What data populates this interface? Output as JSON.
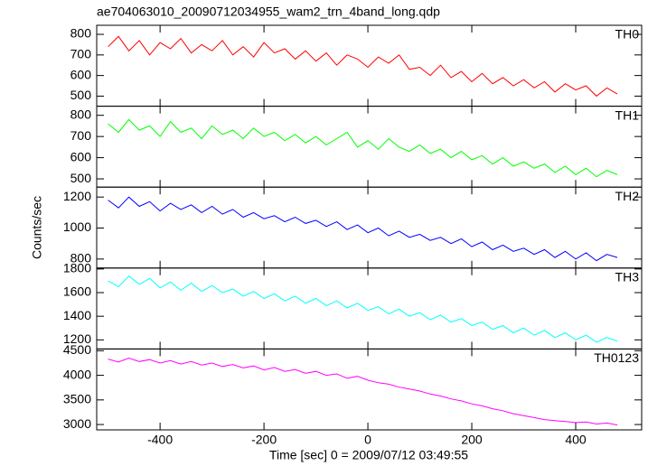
{
  "chart_data": {
    "type": "line",
    "title": "ae704063010_20090712034955_wam2_trn_4band_long.qdp",
    "xlabel": "Time [sec] 0 = 2009/07/12 03:49:55",
    "ylabel": "Counts/sec",
    "xlim": [
      -522,
      527
    ],
    "xticks": [
      -400,
      -200,
      0,
      200,
      400
    ],
    "x": [
      -500,
      -480,
      -460,
      -440,
      -420,
      -400,
      -380,
      -360,
      -340,
      -320,
      -300,
      -280,
      -260,
      -240,
      -220,
      -200,
      -180,
      -160,
      -140,
      -120,
      -100,
      -80,
      -60,
      -40,
      -20,
      0,
      20,
      40,
      60,
      80,
      100,
      120,
      140,
      160,
      180,
      200,
      220,
      240,
      260,
      280,
      300,
      320,
      340,
      360,
      380,
      400,
      420,
      440,
      460,
      480
    ],
    "series": [
      {
        "name": "TH0",
        "color": "#ff0000",
        "ylim": [
          451,
          844
        ],
        "yticks": [
          500,
          600,
          700,
          800
        ],
        "values": [
          740,
          790,
          720,
          770,
          700,
          760,
          730,
          780,
          710,
          750,
          720,
          770,
          700,
          740,
          690,
          760,
          710,
          730,
          680,
          720,
          670,
          710,
          650,
          700,
          680,
          640,
          690,
          660,
          700,
          630,
          640,
          600,
          650,
          590,
          620,
          570,
          610,
          560,
          590,
          550,
          580,
          540,
          570,
          520,
          560,
          530,
          550,
          500,
          540,
          510
        ]
      },
      {
        "name": "TH1",
        "color": "#00ff00",
        "ylim": [
          461,
          843
        ],
        "yticks": [
          500,
          600,
          700,
          800
        ],
        "values": [
          760,
          720,
          780,
          730,
          750,
          700,
          770,
          720,
          740,
          690,
          750,
          710,
          730,
          690,
          740,
          700,
          720,
          680,
          710,
          670,
          700,
          660,
          690,
          720,
          650,
          680,
          640,
          690,
          650,
          630,
          660,
          620,
          640,
          600,
          630,
          590,
          610,
          570,
          600,
          560,
          580,
          550,
          570,
          530,
          560,
          520,
          550,
          510,
          540,
          520
        ]
      },
      {
        "name": "TH2",
        "color": "#0000ff",
        "ylim": [
          742,
          1264
        ],
        "yticks": [
          800,
          1000,
          1200
        ],
        "values": [
          1180,
          1130,
          1200,
          1140,
          1170,
          1110,
          1160,
          1120,
          1150,
          1100,
          1140,
          1090,
          1120,
          1070,
          1100,
          1060,
          1080,
          1040,
          1070,
          1030,
          1050,
          1010,
          1040,
          990,
          1020,
          970,
          1000,
          950,
          980,
          940,
          960,
          920,
          940,
          900,
          930,
          880,
          910,
          860,
          890,
          850,
          870,
          830,
          860,
          810,
          850,
          800,
          840,
          790,
          830,
          810
        ]
      },
      {
        "name": "TH3",
        "color": "#00ffff",
        "ylim": [
          1123,
          1808
        ],
        "yticks": [
          1200,
          1400,
          1600,
          1800
        ],
        "values": [
          1700,
          1650,
          1740,
          1670,
          1720,
          1640,
          1690,
          1620,
          1680,
          1610,
          1660,
          1600,
          1630,
          1570,
          1610,
          1550,
          1590,
          1530,
          1570,
          1510,
          1550,
          1490,
          1530,
          1470,
          1510,
          1450,
          1480,
          1420,
          1460,
          1400,
          1430,
          1370,
          1410,
          1350,
          1380,
          1320,
          1350,
          1290,
          1320,
          1260,
          1300,
          1240,
          1280,
          1220,
          1260,
          1200,
          1240,
          1180,
          1220,
          1190
        ]
      },
      {
        "name": "TH0123",
        "color": "#ff00ff",
        "ylim": [
          2891,
          4536
        ],
        "yticks": [
          3000,
          3500,
          4000,
          4500
        ],
        "values": [
          4330,
          4270,
          4350,
          4280,
          4320,
          4250,
          4300,
          4230,
          4280,
          4210,
          4250,
          4180,
          4220,
          4150,
          4190,
          4110,
          4160,
          4080,
          4120,
          4040,
          4080,
          4000,
          4030,
          3940,
          3980,
          3900,
          3850,
          3820,
          3760,
          3720,
          3680,
          3620,
          3580,
          3520,
          3480,
          3420,
          3380,
          3320,
          3280,
          3220,
          3180,
          3140,
          3100,
          3080,
          3060,
          3040,
          3050,
          3010,
          3030,
          2990
        ]
      }
    ]
  }
}
